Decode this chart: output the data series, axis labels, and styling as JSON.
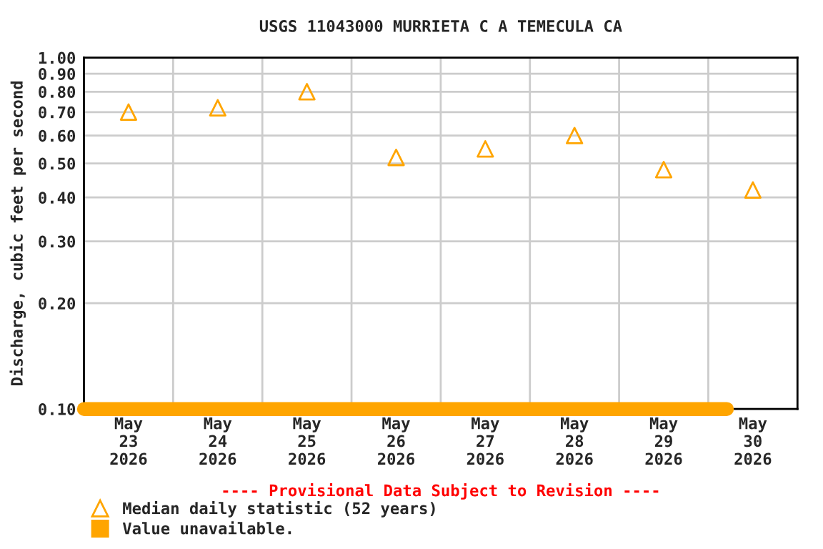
{
  "chart_data": {
    "type": "scatter",
    "title": "USGS 11043000 MURRIETA C A TEMECULA CA",
    "ylabel": "Discharge, cubic feet per second",
    "annotations": [
      "---- Provisional Data Subject to Revision ----"
    ],
    "x": [
      "2026-05-23T12:00",
      "2026-05-24T12:00",
      "2026-05-25T12:00",
      "2026-05-26T12:00",
      "2026-05-27T12:00",
      "2026-05-28T12:00",
      "2026-05-29T12:00",
      "2026-05-30T12:00"
    ],
    "series": [
      {
        "name": "Median daily statistic (52 years)",
        "color": "#ffa500",
        "marker": "triangle",
        "values": [
          0.7,
          0.72,
          0.8,
          0.52,
          0.55,
          0.6,
          0.48,
          0.42
        ]
      },
      {
        "name": "Value unavailable.",
        "type": "line",
        "color": "#ffa500",
        "x": [
          "2026-05-23T00:00",
          "2026-05-30T05:00"
        ],
        "values": [
          0.1,
          0.1
        ]
      }
    ],
    "log": "y",
    "xlim": [
      "2026-05-23T00:00",
      "2026-05-31T00:00"
    ],
    "ylim": [
      0.1,
      1.0
    ],
    "xticks": [
      {
        "value": "2026-05-23T12:00",
        "label": "May\n23\n2026"
      },
      {
        "value": "2026-05-24T12:00",
        "label": "May\n24\n2026"
      },
      {
        "value": "2026-05-25T12:00",
        "label": "May\n25\n2026"
      },
      {
        "value": "2026-05-26T12:00",
        "label": "May\n26\n2026"
      },
      {
        "value": "2026-05-27T12:00",
        "label": "May\n27\n2026"
      },
      {
        "value": "2026-05-28T12:00",
        "label": "May\n28\n2026"
      },
      {
        "value": "2026-05-29T12:00",
        "label": "May\n29\n2026"
      },
      {
        "value": "2026-05-30T12:00",
        "label": "May\n30\n2026"
      }
    ],
    "yticks": [
      {
        "value": 0.1,
        "label": "0.10"
      },
      {
        "value": 0.2,
        "label": "0.20"
      },
      {
        "value": 0.3,
        "label": "0.30"
      },
      {
        "value": 0.4,
        "label": "0.40"
      },
      {
        "value": 0.5,
        "label": "0.50"
      },
      {
        "value": 0.6,
        "label": "0.60"
      },
      {
        "value": 0.7,
        "label": "0.70"
      },
      {
        "value": 0.8,
        "label": "0.80"
      },
      {
        "value": 0.9,
        "label": "0.90"
      },
      {
        "value": 1.0,
        "label": "1.00"
      }
    ],
    "grid": true,
    "legend": "bottom left"
  }
}
